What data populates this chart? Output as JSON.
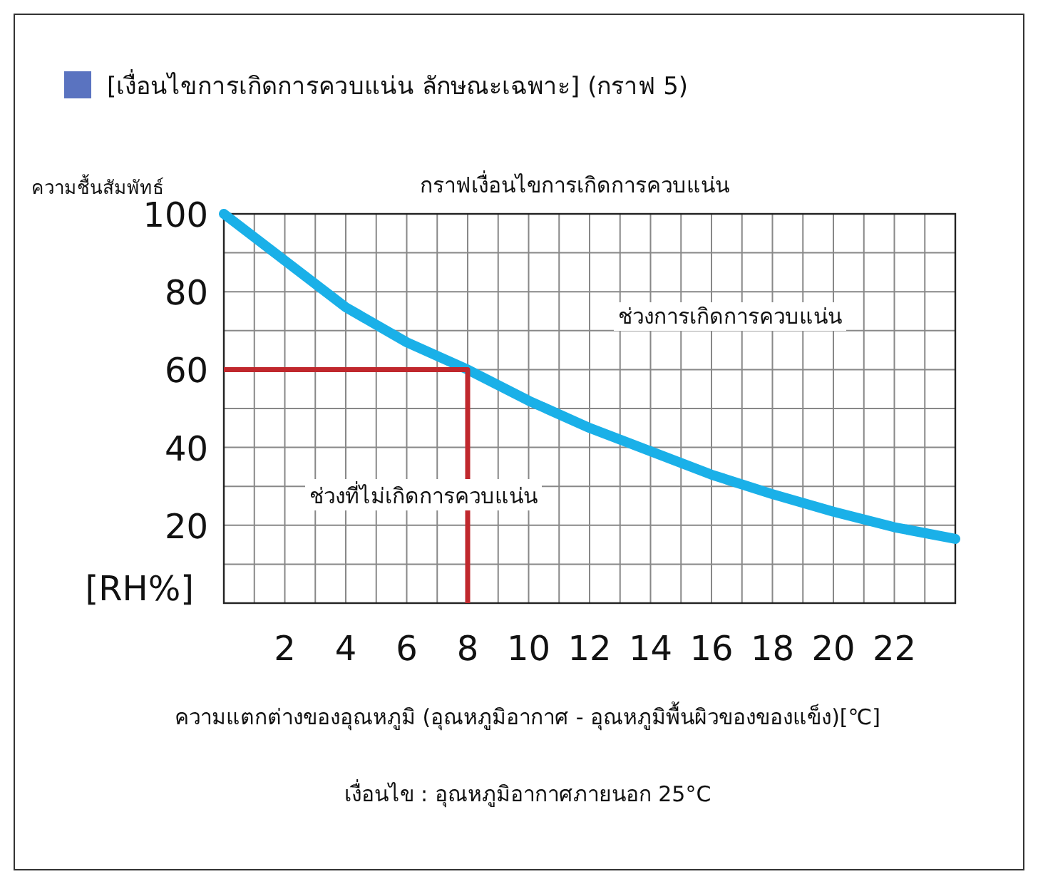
{
  "chart_data": {
    "type": "line",
    "title": "[เงื่อนไขการเกิดการควบแน่น ลักษณะเฉพาะ] (กราฟ 5)",
    "subtitle": "กราฟเงื่อนไขการเกิดการควบแน่น",
    "ylabel": "ความชื้นสัมพัทธ์",
    "xlabel": "ความแตกต่างของอุณหภูมิ (อุณหภูมิอากาศ - อุณหภูมิพื้นผิวของของแข็ง)[℃]",
    "xlim": [
      0,
      24
    ],
    "ylim": [
      0,
      100
    ],
    "xticks": [
      {
        "value": 0,
        "label": null
      },
      {
        "value": 1,
        "label": null
      },
      2,
      {
        "value": 3,
        "label": null
      },
      4,
      {
        "value": 5,
        "label": null
      },
      6,
      {
        "value": 7,
        "label": null
      },
      8,
      {
        "value": 9,
        "label": null
      },
      10,
      {
        "value": 11,
        "label": null
      },
      12,
      {
        "value": 13,
        "label": null
      },
      14,
      {
        "value": 15,
        "label": null
      },
      16,
      {
        "value": 17,
        "label": null
      },
      18,
      {
        "value": 19,
        "label": null
      },
      20,
      {
        "value": 21,
        "label": null
      },
      22,
      {
        "value": 23,
        "label": null
      },
      {
        "value": 24,
        "label": null
      }
    ],
    "yticks": [
      {
        "value": 0,
        "label": null
      },
      {
        "value": 10,
        "label": null
      },
      20,
      {
        "value": 30,
        "label": null
      },
      40,
      {
        "value": 50,
        "label": null
      },
      60,
      {
        "value": 70,
        "label": null
      },
      80,
      {
        "value": 90,
        "label": null
      },
      100
    ],
    "grid": true,
    "series": [
      {
        "color": "#1ab0e8",
        "x": [
          0,
          2,
          4,
          6,
          8,
          10,
          12,
          14,
          16,
          18,
          20,
          22,
          24
        ],
        "values": [
          100,
          88,
          76,
          67,
          60,
          52,
          45,
          39,
          33,
          28,
          23.5,
          19.5,
          16.5
        ]
      },
      {
        "color": "#c0282d",
        "x": [
          0,
          8,
          8
        ],
        "values": [
          60,
          60,
          0
        ]
      }
    ],
    "annotations": [
      "[RH%]",
      "ช่วงการเกิดการควบแน่น",
      "ช่วงที่ไม่เกิดการควบแน่น",
      "เงื่อนไข : อุณหภูมิอากาศภายนอก 25°C"
    ]
  }
}
